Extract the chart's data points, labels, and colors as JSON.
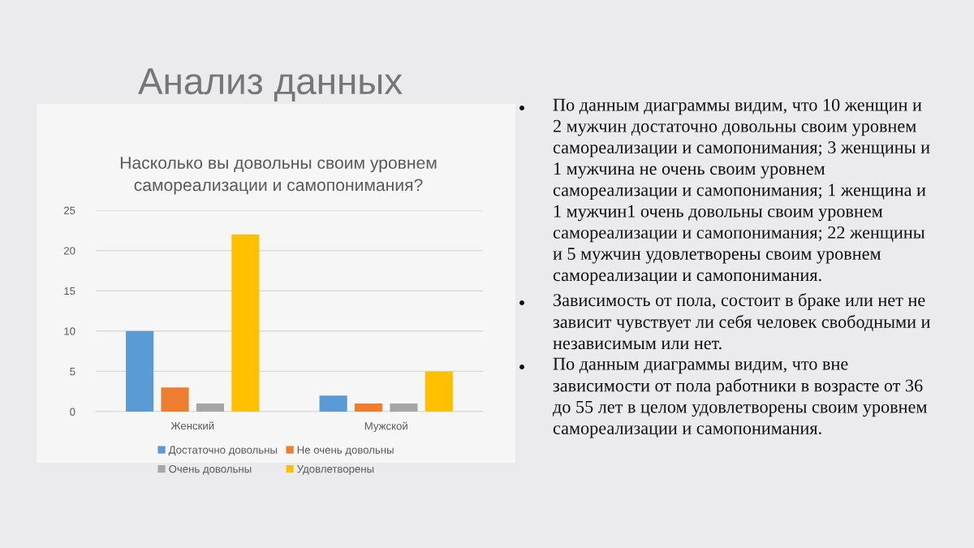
{
  "chart_data": {
    "type": "bar",
    "title": "Насколько вы довольны своим уровнем самореализации и самопонимания?",
    "categories": [
      "Женский",
      "Мужской"
    ],
    "series": [
      {
        "name": "Достаточно довольны",
        "color": "#5b9bd5",
        "values": [
          10,
          2
        ]
      },
      {
        "name": "Не очень довольны",
        "color": "#ed7d31",
        "values": [
          3,
          1
        ]
      },
      {
        "name": "Очень довольны",
        "color": "#a5a5a5",
        "values": [
          1,
          1
        ]
      },
      {
        "name": "Удовлетворены",
        "color": "#ffc000",
        "values": [
          22,
          5
        ]
      }
    ],
    "ylim": [
      0,
      25
    ],
    "yticks": [
      0,
      5,
      10,
      15,
      20,
      25
    ],
    "grid": "y",
    "legend": "bottom",
    "annotations": [
      "Анализ данных",
      "По данным диаграммы видим, что 10 женщин и 2 мужчин достаточно довольны своим уровнем самореализации и самопонимания; 3 женщины и 1 мужчина не очень своим уровнем самореализации и самопонимания; 1 женщина и 1 мужчин1 очень довольны своим уровнем самореализации и самопонимания; 22 женщины и 5 мужчин удовлетворены своим уровнем самореализации и самопонимания.",
      "Зависимость от пола, состоит в браке или нет не зависит чувствует ли себя человек свободными и независимым или нет.",
      "По данным диаграммы видим, что вне зависимости от пола работники в возрасте от 36 до 55 лет в целом удовлетворены своим уровнем самореализации и самопонимания."
    ]
  }
}
